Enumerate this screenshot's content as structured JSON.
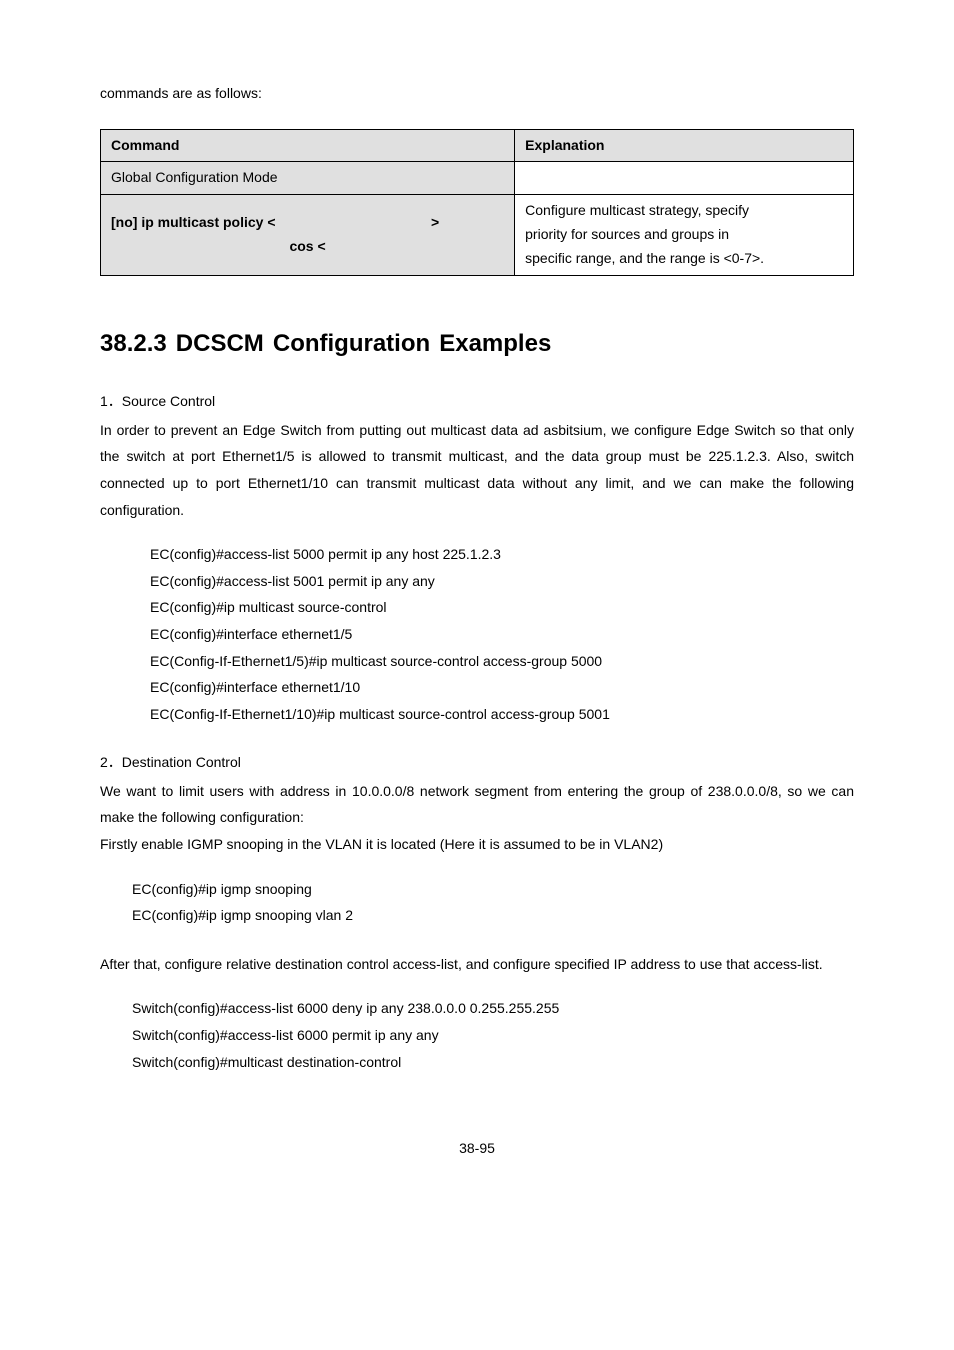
{
  "intro": "commands are as follows:",
  "table": {
    "header_left": "Command",
    "header_right": "Explanation",
    "row1_left": "Global Configuration Mode",
    "row1_right": "",
    "row2_left_a": "[no] ip multicast policy <",
    "row2_left_b": ">",
    "row2_left_cos": "cos <",
    "row2_right_l1": "Configure multicast strategy, specify",
    "row2_right_l2": "priority for sources and groups in",
    "row2_right_l3": "specific range, and the range is <0-7>."
  },
  "heading": "38.2.3 DCSCM Configuration Examples",
  "section1": {
    "title": "1．Source Control",
    "paragraph": "In order to prevent an Edge Switch from putting out multicast data ad asbitsium, we configure Edge Switch so that only the switch at port Ethernet1/5 is allowed to transmit multicast, and the data group must be 225.1.2.3. Also, switch connected up to port Ethernet1/10 can transmit multicast data without any limit, and we can make the following configuration.",
    "cmds": [
      "EC(config)#access-list 5000 permit ip any host 225.1.2.3",
      "EC(config)#access-list 5001 permit ip any any",
      "EC(config)#ip multicast source-control",
      "EC(config)#interface ethernet1/5",
      "EC(Config-If-Ethernet1/5)#ip multicast source-control access-group 5000",
      "EC(config)#interface ethernet1/10",
      "EC(Config-If-Ethernet1/10)#ip multicast source-control access-group 5001"
    ]
  },
  "section2": {
    "title": "2．Destination Control",
    "paragraph1": "We want to limit users with address in 10.0.0.0/8 network segment from entering the group of 238.0.0.0/8, so we can make the following configuration:",
    "paragraph2": "Firstly enable IGMP snooping in the VLAN it is located (Here it is assumed to be in VLAN2)",
    "cmds1": [
      "EC(config)#ip igmp snooping",
      "EC(config)#ip igmp snooping vlan 2"
    ],
    "paragraph3": "After that, configure relative destination control access-list, and configure specified IP address to use that access-list.",
    "cmds2": [
      "Switch(config)#access-list 6000 deny ip any 238.0.0.0 0.255.255.255",
      "Switch(config)#access-list 6000 permit ip any any",
      "Switch(config)#multicast destination-control"
    ]
  },
  "page_number": "38-95"
}
